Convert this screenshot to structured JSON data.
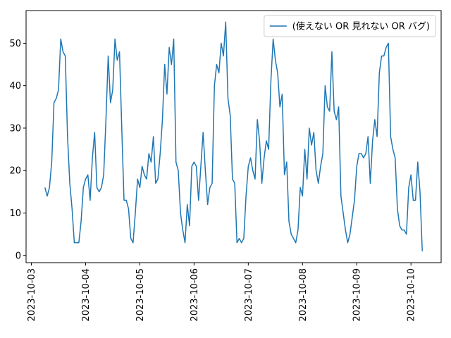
{
  "chart_data": {
    "type": "line",
    "legend_loc": "upper right",
    "grid": false,
    "xlim": [
      "2023-10-02 21:39",
      "2023-10-10 13:21"
    ],
    "xticks": [
      "2023-10-03",
      "2023-10-04",
      "2023-10-05",
      "2023-10-06",
      "2023-10-07",
      "2023-10-08",
      "2023-10-09",
      "2023-10-10"
    ],
    "ylim": [
      -1.7,
      57.7
    ],
    "yticks": [
      0,
      10,
      20,
      30,
      40,
      50
    ],
    "x": [
      "2023-10-03 06:00",
      "2023-10-03 07:00",
      "2023-10-03 08:00",
      "2023-10-03 09:00",
      "2023-10-03 10:00",
      "2023-10-03 11:00",
      "2023-10-03 12:00",
      "2023-10-03 13:00",
      "2023-10-03 14:00",
      "2023-10-03 15:00",
      "2023-10-03 16:00",
      "2023-10-03 17:00",
      "2023-10-03 18:00",
      "2023-10-03 19:00",
      "2023-10-03 20:00",
      "2023-10-03 21:00",
      "2023-10-03 22:00",
      "2023-10-03 23:00",
      "2023-10-04 00:00",
      "2023-10-04 01:00",
      "2023-10-04 02:00",
      "2023-10-04 03:00",
      "2023-10-04 04:00",
      "2023-10-04 05:00",
      "2023-10-04 06:00",
      "2023-10-04 07:00",
      "2023-10-04 08:00",
      "2023-10-04 09:00",
      "2023-10-04 10:00",
      "2023-10-04 11:00",
      "2023-10-04 12:00",
      "2023-10-04 13:00",
      "2023-10-04 14:00",
      "2023-10-04 15:00",
      "2023-10-04 16:00",
      "2023-10-04 17:00",
      "2023-10-04 18:00",
      "2023-10-04 19:00",
      "2023-10-04 20:00",
      "2023-10-04 21:00",
      "2023-10-04 22:00",
      "2023-10-04 23:00",
      "2023-10-05 00:00",
      "2023-10-05 01:00",
      "2023-10-05 02:00",
      "2023-10-05 03:00",
      "2023-10-05 04:00",
      "2023-10-05 05:00",
      "2023-10-05 06:00",
      "2023-10-05 07:00",
      "2023-10-05 08:00",
      "2023-10-05 09:00",
      "2023-10-05 10:00",
      "2023-10-05 11:00",
      "2023-10-05 12:00",
      "2023-10-05 13:00",
      "2023-10-05 14:00",
      "2023-10-05 15:00",
      "2023-10-05 16:00",
      "2023-10-05 17:00",
      "2023-10-05 18:00",
      "2023-10-05 19:00",
      "2023-10-05 20:00",
      "2023-10-05 21:00",
      "2023-10-05 22:00",
      "2023-10-05 23:00",
      "2023-10-06 00:00",
      "2023-10-06 01:00",
      "2023-10-06 02:00",
      "2023-10-06 03:00",
      "2023-10-06 04:00",
      "2023-10-06 05:00",
      "2023-10-06 06:00",
      "2023-10-06 07:00",
      "2023-10-06 08:00",
      "2023-10-06 09:00",
      "2023-10-06 10:00",
      "2023-10-06 11:00",
      "2023-10-06 12:00",
      "2023-10-06 13:00",
      "2023-10-06 14:00",
      "2023-10-06 15:00",
      "2023-10-06 16:00",
      "2023-10-06 17:00",
      "2023-10-06 18:00",
      "2023-10-06 19:00",
      "2023-10-06 20:00",
      "2023-10-06 21:00",
      "2023-10-06 22:00",
      "2023-10-06 23:00",
      "2023-10-07 00:00",
      "2023-10-07 01:00",
      "2023-10-07 02:00",
      "2023-10-07 03:00",
      "2023-10-07 04:00",
      "2023-10-07 05:00",
      "2023-10-07 06:00",
      "2023-10-07 07:00",
      "2023-10-07 08:00",
      "2023-10-07 09:00",
      "2023-10-07 10:00",
      "2023-10-07 11:00",
      "2023-10-07 12:00",
      "2023-10-07 13:00",
      "2023-10-07 14:00",
      "2023-10-07 15:00",
      "2023-10-07 16:00",
      "2023-10-07 17:00",
      "2023-10-07 18:00",
      "2023-10-07 19:00",
      "2023-10-07 20:00",
      "2023-10-07 21:00",
      "2023-10-07 22:00",
      "2023-10-07 23:00",
      "2023-10-08 00:00",
      "2023-10-08 01:00",
      "2023-10-08 02:00",
      "2023-10-08 03:00",
      "2023-10-08 04:00",
      "2023-10-08 05:00",
      "2023-10-08 06:00",
      "2023-10-08 07:00",
      "2023-10-08 08:00",
      "2023-10-08 09:00",
      "2023-10-08 10:00",
      "2023-10-08 11:00",
      "2023-10-08 12:00",
      "2023-10-08 13:00",
      "2023-10-08 14:00",
      "2023-10-08 15:00",
      "2023-10-08 16:00",
      "2023-10-08 17:00",
      "2023-10-08 18:00",
      "2023-10-08 19:00",
      "2023-10-08 20:00",
      "2023-10-08 21:00",
      "2023-10-08 22:00",
      "2023-10-08 23:00",
      "2023-10-09 00:00",
      "2023-10-09 01:00",
      "2023-10-09 02:00",
      "2023-10-09 03:00",
      "2023-10-09 04:00",
      "2023-10-09 05:00",
      "2023-10-09 06:00",
      "2023-10-09 07:00",
      "2023-10-09 08:00",
      "2023-10-09 09:00",
      "2023-10-09 10:00",
      "2023-10-09 11:00",
      "2023-10-09 12:00",
      "2023-10-09 13:00",
      "2023-10-09 14:00",
      "2023-10-09 15:00",
      "2023-10-09 16:00",
      "2023-10-09 17:00",
      "2023-10-09 18:00",
      "2023-10-09 19:00",
      "2023-10-09 20:00",
      "2023-10-09 21:00",
      "2023-10-09 22:00",
      "2023-10-09 23:00",
      "2023-10-10 00:00",
      "2023-10-10 01:00",
      "2023-10-10 02:00",
      "2023-10-10 03:00",
      "2023-10-10 04:00",
      "2023-10-10 05:00"
    ],
    "series": [
      {
        "name": "(使えない OR 見れない OR バグ)",
        "color": "#1f77b4",
        "values": [
          16,
          14,
          16,
          22,
          36,
          37,
          39,
          51,
          48,
          47,
          28,
          17,
          11,
          3,
          3,
          3,
          8,
          16,
          18,
          19,
          13,
          23,
          29,
          16,
          15,
          16,
          19,
          32,
          47,
          36,
          39,
          51,
          46,
          48,
          30,
          13,
          13,
          11,
          4,
          3,
          10,
          18,
          16,
          21,
          19,
          18,
          24,
          22,
          28,
          17,
          18,
          24,
          32,
          45,
          38,
          49,
          45,
          51,
          22,
          20,
          10,
          6,
          3,
          12,
          7,
          21,
          22,
          21,
          13,
          21,
          29,
          20,
          12,
          16,
          17,
          40,
          45,
          43,
          50,
          47,
          55,
          37,
          33,
          18,
          17,
          3,
          4,
          3,
          4,
          14,
          21,
          23,
          20,
          18,
          32,
          27,
          17,
          23,
          27,
          25,
          41,
          51,
          46,
          43,
          35,
          38,
          19,
          22,
          8,
          5,
          4,
          3,
          6,
          16,
          14,
          25,
          18,
          30,
          26,
          29,
          20,
          17,
          21,
          24,
          40,
          35,
          34,
          48,
          34,
          32,
          35,
          14,
          10,
          6,
          3,
          5,
          9,
          13,
          21,
          24,
          24,
          23,
          24,
          28,
          17,
          27,
          32,
          28,
          43,
          47,
          47,
          49,
          50,
          28,
          25,
          23,
          11,
          7,
          6,
          6,
          5,
          16,
          19,
          13,
          13,
          22,
          15,
          1
        ]
      }
    ]
  }
}
